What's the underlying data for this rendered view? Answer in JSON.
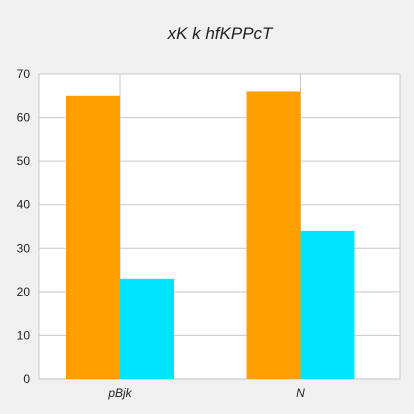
{
  "chart_data": {
    "type": "bar",
    "title": "xK k  hfKPPcT",
    "xlabel": "",
    "ylabel": "",
    "categories": [
      "pBjk",
      "N"
    ],
    "series": [
      {
        "values": [
          65,
          66
        ],
        "color": "#ffa000"
      },
      {
        "values": [
          23,
          34
        ],
        "color": "#00e5ff"
      }
    ],
    "ylim": [
      0,
      70
    ],
    "yticks": [
      "0",
      "10",
      "20",
      "30",
      "40",
      "50",
      "60",
      "70"
    ],
    "grid": true,
    "legend": "none"
  }
}
